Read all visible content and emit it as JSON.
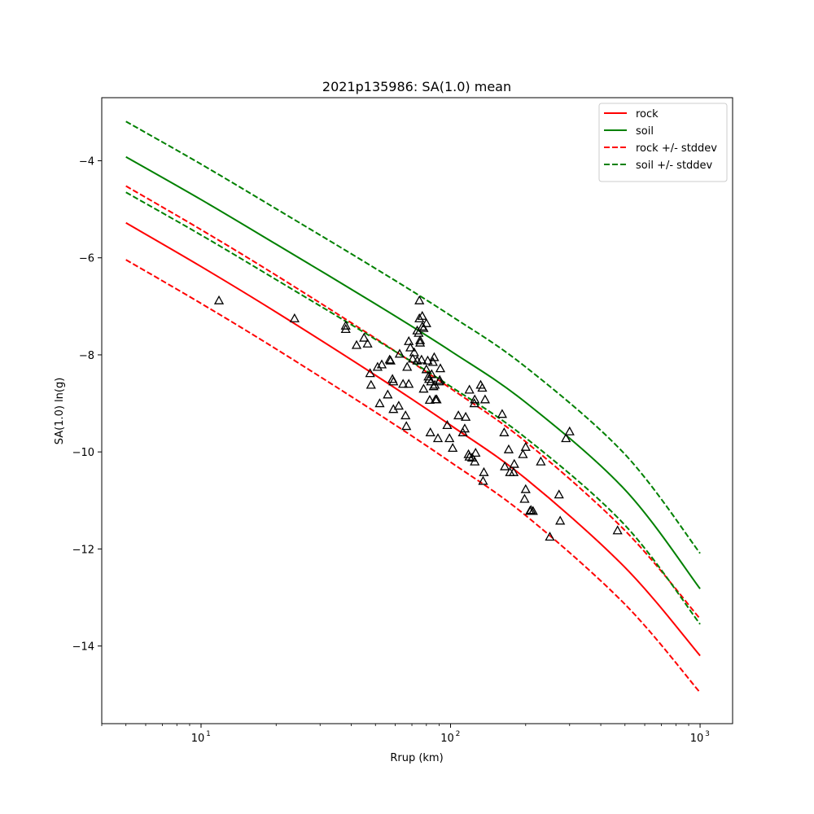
{
  "chart_data": {
    "type": "line",
    "title": "2021p135986: SA(1.0) mean",
    "xlabel": "Rrup (km)",
    "ylabel": "SA(1.0) ln(g)",
    "xscale": "log",
    "xlim": [
      4.0,
      1350
    ],
    "ylim": [
      -15.6,
      -2.7
    ],
    "x_ticks": [
      {
        "value": 10,
        "base": "10",
        "exp": "1"
      },
      {
        "value": 100,
        "base": "10",
        "exp": "2"
      },
      {
        "value": 1000,
        "base": "10",
        "exp": "3"
      }
    ],
    "y_ticks": [
      {
        "value": -4,
        "label": "−4"
      },
      {
        "value": -6,
        "label": "−6"
      },
      {
        "value": -8,
        "label": "−8"
      },
      {
        "value": -10,
        "label": "−10"
      },
      {
        "value": -12,
        "label": "−12"
      },
      {
        "value": -14,
        "label": "−14"
      }
    ],
    "grid": false,
    "legend_position": "top-right",
    "series": [
      {
        "name": "rock",
        "color": "#ff0000",
        "dash": "solid",
        "x": [
          5,
          10,
          20,
          50,
          100,
          200,
          500,
          1000
        ],
        "y": [
          -5.28,
          -6.18,
          -7.12,
          -8.42,
          -9.45,
          -10.55,
          -12.38,
          -14.2
        ]
      },
      {
        "name": "soil",
        "color": "#008000",
        "dash": "solid",
        "x": [
          5,
          10,
          20,
          50,
          100,
          200,
          500,
          1000
        ],
        "y": [
          -3.92,
          -4.8,
          -5.72,
          -6.95,
          -7.92,
          -8.98,
          -10.78,
          -12.82
        ]
      },
      {
        "name": "rock +/- stddev",
        "color": "#ff0000",
        "dash": "dashed",
        "x": [
          5,
          10,
          20,
          50,
          100,
          200,
          500,
          1000
        ],
        "y": [
          -4.52,
          -5.42,
          -6.36,
          -7.66,
          -8.69,
          -9.79,
          -11.62,
          -13.44
        ]
      },
      {
        "name": "",
        "color": "#ff0000",
        "dash": "dashed",
        "x": [
          5,
          10,
          20,
          50,
          100,
          200,
          500,
          1000
        ],
        "y": [
          -6.04,
          -6.94,
          -7.88,
          -9.18,
          -10.21,
          -11.31,
          -13.14,
          -14.96
        ]
      },
      {
        "name": "soil +/- stddev",
        "color": "#008000",
        "dash": "dashed",
        "x": [
          5,
          10,
          20,
          50,
          100,
          200,
          500,
          1000
        ],
        "y": [
          -3.19,
          -4.07,
          -4.99,
          -6.22,
          -7.19,
          -8.25,
          -10.05,
          -12.09
        ]
      },
      {
        "name": "",
        "color": "#008000",
        "dash": "dashed",
        "x": [
          5,
          10,
          20,
          50,
          100,
          200,
          500,
          1000
        ],
        "y": [
          -4.65,
          -5.53,
          -6.45,
          -7.68,
          -8.65,
          -9.71,
          -11.51,
          -13.55
        ]
      }
    ],
    "observations": {
      "marker": "triangle",
      "color": "#000000",
      "points": [
        [
          11.8,
          -6.88
        ],
        [
          23.7,
          -7.25
        ],
        [
          38,
          -7.4
        ],
        [
          38,
          -7.47
        ],
        [
          42,
          -7.8
        ],
        [
          45,
          -7.65
        ],
        [
          46.5,
          -7.77
        ],
        [
          47.6,
          -8.38
        ],
        [
          48,
          -8.62
        ],
        [
          51,
          -8.25
        ],
        [
          52,
          -9.0
        ],
        [
          53,
          -8.2
        ],
        [
          56,
          -8.82
        ],
        [
          57,
          -8.1
        ],
        [
          57.5,
          -8.12
        ],
        [
          58.5,
          -8.5
        ],
        [
          59,
          -8.55
        ],
        [
          59,
          -9.12
        ],
        [
          62,
          -9.05
        ],
        [
          62.5,
          -7.98
        ],
        [
          64.5,
          -8.6
        ],
        [
          66,
          -9.25
        ],
        [
          66.5,
          -9.47
        ],
        [
          67,
          -8.25
        ],
        [
          68,
          -8.6
        ],
        [
          68,
          -7.72
        ],
        [
          69,
          -7.85
        ],
        [
          70.5,
          -8.08
        ],
        [
          71.5,
          -7.95
        ],
        [
          73.5,
          -7.5
        ],
        [
          73.5,
          -8.12
        ],
        [
          74.5,
          -7.55
        ],
        [
          75,
          -7.25
        ],
        [
          75,
          -6.88
        ],
        [
          75.5,
          -7.7
        ],
        [
          75.5,
          -7.75
        ],
        [
          76.5,
          -8.1
        ],
        [
          77,
          -7.2
        ],
        [
          77,
          -7.42
        ],
        [
          78,
          -7.45
        ],
        [
          78,
          -8.7
        ],
        [
          80,
          -7.35
        ],
        [
          80,
          -8.3
        ],
        [
          81,
          -8.12
        ],
        [
          81.5,
          -8.45
        ],
        [
          82,
          -8.5
        ],
        [
          82.5,
          -8.93
        ],
        [
          83,
          -9.6
        ],
        [
          83.5,
          -8.55
        ],
        [
          84,
          -8.4
        ],
        [
          85,
          -8.15
        ],
        [
          85.5,
          -8.65
        ],
        [
          86,
          -8.05
        ],
        [
          86.5,
          -8.62
        ],
        [
          87,
          -8.92
        ],
        [
          88,
          -8.92
        ],
        [
          89,
          -9.72
        ],
        [
          90,
          -8.55
        ],
        [
          90.5,
          -8.52
        ],
        [
          91,
          -8.28
        ],
        [
          97,
          -9.45
        ],
        [
          99,
          -9.72
        ],
        [
          102,
          -9.92
        ],
        [
          107.5,
          -9.25
        ],
        [
          112,
          -9.6
        ],
        [
          114,
          -9.52
        ],
        [
          115,
          -9.28
        ],
        [
          118,
          -10.05
        ],
        [
          119,
          -10.1
        ],
        [
          119,
          -8.72
        ],
        [
          122,
          -10.12
        ],
        [
          124.5,
          -9.0
        ],
        [
          125,
          -10.2
        ],
        [
          125,
          -8.92
        ],
        [
          126,
          -10.02
        ],
        [
          132,
          -8.62
        ],
        [
          134,
          -8.68
        ],
        [
          135,
          -10.6
        ],
        [
          136,
          -10.42
        ],
        [
          137.5,
          -8.92
        ],
        [
          161,
          -9.22
        ],
        [
          164,
          -9.6
        ],
        [
          165,
          -10.3
        ],
        [
          171,
          -9.95
        ],
        [
          173,
          -10.42
        ],
        [
          179,
          -10.42
        ],
        [
          180,
          -10.25
        ],
        [
          195,
          -10.05
        ],
        [
          198,
          -10.97
        ],
        [
          200,
          -9.9
        ],
        [
          200,
          -10.77
        ],
        [
          208,
          -11.22
        ],
        [
          210,
          -11.2
        ],
        [
          214,
          -11.22
        ],
        [
          230,
          -10.2
        ],
        [
          250,
          -11.75
        ],
        [
          272,
          -10.88
        ],
        [
          275,
          -11.42
        ],
        [
          290,
          -9.72
        ],
        [
          300,
          -9.58
        ],
        [
          467,
          -11.62
        ]
      ]
    }
  }
}
